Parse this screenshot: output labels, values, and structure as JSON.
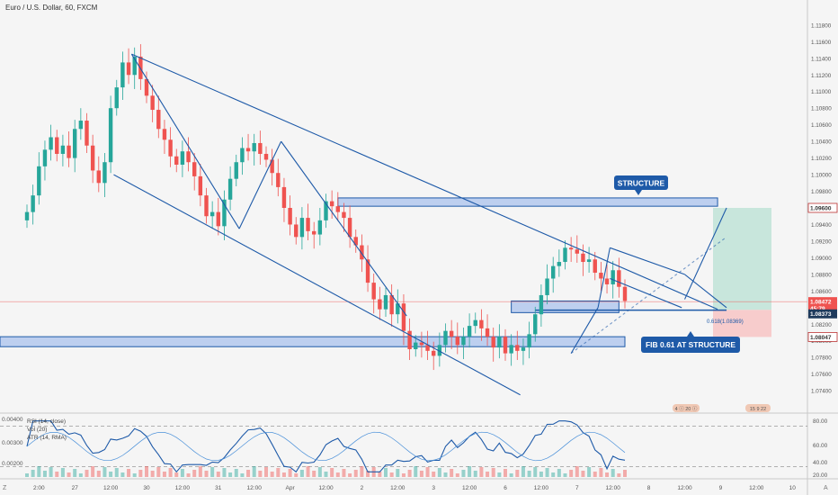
{
  "header": {
    "symbol_title": "Euro / U.S. Dollar, 60, FXCM"
  },
  "colors": {
    "bull": "#26a69a",
    "bear": "#ef5350",
    "drawing": "#1e5aa8",
    "zone_fill": "#a9c2ec",
    "target_fill": "#c8e6dc",
    "stop_fill": "#f7cccc",
    "price_line": "#ef5350",
    "rsi_line": "#1e5aa8",
    "ma_line": "#4a90d9"
  },
  "price_axis": {
    "ticks": [
      "1.11800",
      "1.11600",
      "1.11400",
      "1.11200",
      "1.11000",
      "1.10800",
      "1.10600",
      "1.10400",
      "1.10200",
      "1.10000",
      "1.09800",
      "1.09600",
      "1.09400",
      "1.09200",
      "1.09000",
      "1.08800",
      "1.08600",
      "1.08400",
      "1.08200",
      "1.08000",
      "1.07800",
      "1.07600",
      "1.07400"
    ],
    "badges": [
      {
        "label": "1.09600",
        "value": 1.096,
        "style": "outline"
      },
      {
        "label": "1.08472",
        "value": 1.08472,
        "style": "red"
      },
      {
        "label": "45:79",
        "value": 1.0839,
        "style": "red"
      },
      {
        "label": "1.08373",
        "value": 1.08325,
        "style": "dark"
      },
      {
        "label": "1.08047",
        "value": 1.08047,
        "style": "outline"
      }
    ]
  },
  "time_axis": {
    "labels": [
      {
        "t": 2,
        "label": "2:00"
      },
      {
        "t": 8,
        "label": "27"
      },
      {
        "t": 14,
        "label": "12:00"
      },
      {
        "t": 20,
        "label": "30"
      },
      {
        "t": 26,
        "label": "12:00"
      },
      {
        "t": 32,
        "label": "31"
      },
      {
        "t": 38,
        "label": "12:00"
      },
      {
        "t": 44,
        "label": "Apr"
      },
      {
        "t": 50,
        "label": "12:00"
      },
      {
        "t": 56,
        "label": "2"
      },
      {
        "t": 62,
        "label": "12:00"
      },
      {
        "t": 68,
        "label": "3"
      },
      {
        "t": 74,
        "label": "12:00"
      },
      {
        "t": 80,
        "label": "6"
      },
      {
        "t": 86,
        "label": "12:00"
      },
      {
        "t": 92,
        "label": "7"
      },
      {
        "t": 98,
        "label": "12:00"
      },
      {
        "t": 104,
        "label": "8"
      },
      {
        "t": 110,
        "label": "12:00"
      },
      {
        "t": 116,
        "label": "9"
      },
      {
        "t": 122,
        "label": "12:00"
      },
      {
        "t": 128,
        "label": "10"
      }
    ]
  },
  "annotations": {
    "structure_label": "STRUCTURE",
    "fib_label": "FIB 0.61 AT STRUCTURE",
    "fib_level_text": "0.618(1.08369)",
    "event_marker_1": "4  ⓘ  20  ⓘ",
    "event_marker_2": "15  9  22"
  },
  "indicator": {
    "legend": [
      "RSI (14, close)",
      "Vol (20)",
      "ATR (14, RMA)"
    ],
    "ticks": [
      "80.00",
      "60.00",
      "40.00",
      "20.00"
    ],
    "left_ticks": [
      "0.00400",
      "0.00300",
      "0.00200"
    ]
  },
  "chart_data": {
    "type": "candlestick",
    "title": "Euro / U.S. Dollar, 60, FXCM",
    "x_unit": "time",
    "y_range": [
      1.0725,
      1.1195
    ],
    "series_close": [
      1.0955,
      1.0975,
      1.101,
      1.103,
      1.1045,
      1.1025,
      1.1035,
      1.102,
      1.1055,
      1.1065,
      1.1035,
      1.1005,
      1.099,
      1.1015,
      1.108,
      1.1105,
      1.1135,
      1.112,
      1.1142,
      1.1115,
      1.1095,
      1.1078,
      1.1055,
      1.1042,
      1.1022,
      1.1012,
      1.1028,
      1.1015,
      1.0998,
      1.0975,
      1.095,
      1.0955,
      1.0938,
      1.097,
      1.0995,
      1.1015,
      1.1032,
      1.1028,
      1.1038,
      1.1025,
      1.1018,
      1.1002,
      1.0985,
      1.096,
      1.094,
      1.0925,
      1.0948,
      1.0932,
      1.0928,
      1.0945,
      1.0968,
      1.0962,
      1.0955,
      1.0948,
      1.0925,
      1.0915,
      1.0898,
      1.087,
      1.085,
      1.0838,
      1.0855,
      1.0832,
      1.0845,
      1.0812,
      1.079,
      1.0798,
      1.0795,
      1.0788,
      1.0782,
      1.0795,
      1.0812,
      1.0805,
      1.0795,
      1.0805,
      1.0818,
      1.0825,
      1.0815,
      1.0805,
      1.0792,
      1.0805,
      1.0785,
      1.0795,
      1.0788,
      1.0792,
      1.0808,
      1.0832,
      1.0855,
      1.0875,
      1.089,
      1.0895,
      1.0912,
      1.091,
      1.0905,
      1.0895,
      1.0898,
      1.0882,
      1.0875,
      1.0868,
      1.0885,
      1.0865,
      1.0848
    ],
    "annotation_levels": {
      "resistance_zone": [
        1.0962,
        1.0972
      ],
      "support_zone": [
        1.0793,
        1.0805
      ],
      "fib_0_618": 1.08369,
      "target": 1.096,
      "entry": 1.08373,
      "stop": 1.08047,
      "current_price": 1.08472
    },
    "oscillator": {
      "name": "RSI (14, close)",
      "range": [
        20,
        80
      ],
      "levels": [
        70,
        30
      ]
    }
  }
}
